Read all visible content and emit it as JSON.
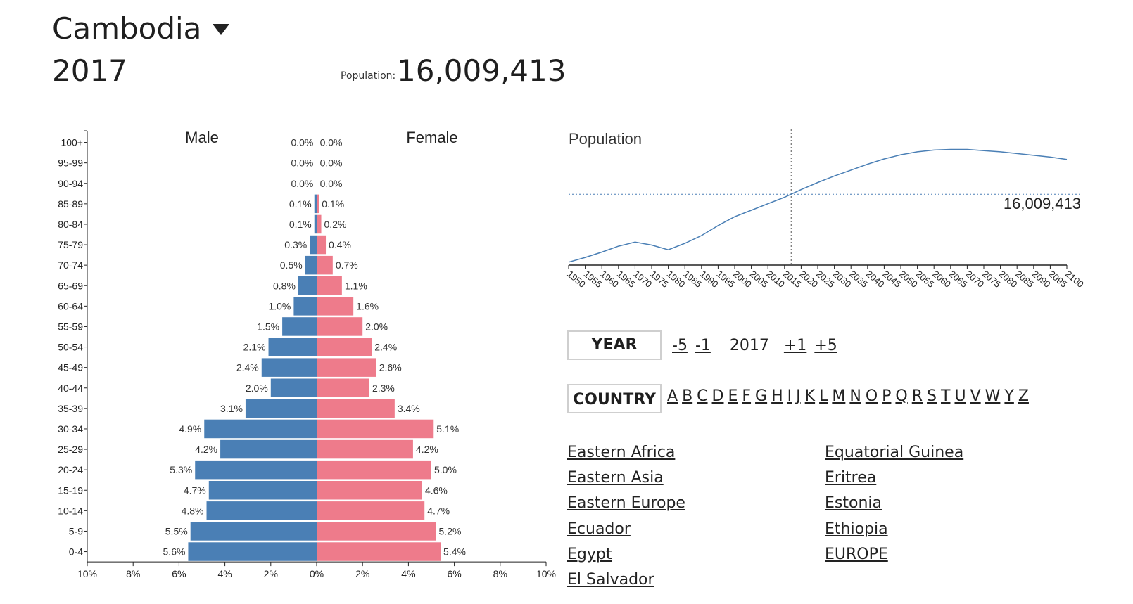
{
  "header": {
    "country": "Cambodia",
    "year": "2017",
    "population_label": "Population:",
    "population_value": "16,009,413"
  },
  "controls": {
    "year_label": "YEAR",
    "year_minus5": "-5",
    "year_minus1": "-1",
    "year_current": "2017",
    "year_plus1": "+1",
    "year_plus5": "+5",
    "country_label": "COUNTRY",
    "letters": [
      "A",
      "B",
      "C",
      "D",
      "E",
      "F",
      "G",
      "H",
      "I",
      "J",
      "K",
      "L",
      "M",
      "N",
      "O",
      "P",
      "Q",
      "R",
      "S",
      "T",
      "U",
      "V",
      "W",
      "Y",
      "Z"
    ]
  },
  "country_list": {
    "column1": [
      "Eastern Africa",
      "Eastern Asia",
      "Eastern Europe",
      "Ecuador",
      "Egypt",
      "El Salvador"
    ],
    "column2": [
      "Equatorial Guinea",
      "Eritrea",
      "Estonia",
      "Ethiopia",
      "EUROPE"
    ]
  },
  "chart_data": [
    {
      "type": "bar",
      "orientation": "horizontal",
      "title": "",
      "categories": [
        "100+",
        "95-99",
        "90-94",
        "85-89",
        "80-84",
        "75-79",
        "70-74",
        "65-69",
        "60-64",
        "55-59",
        "50-54",
        "45-49",
        "40-44",
        "35-39",
        "30-34",
        "25-29",
        "20-24",
        "15-19",
        "10-14",
        "5-9",
        "0-4"
      ],
      "series": [
        {
          "name": "Male",
          "color": "#4a7fb5",
          "values": [
            0.0,
            0.0,
            0.0,
            0.1,
            0.1,
            0.3,
            0.5,
            0.8,
            1.0,
            1.5,
            2.1,
            2.4,
            2.0,
            3.1,
            4.9,
            4.2,
            5.3,
            4.7,
            4.8,
            5.5,
            5.6
          ]
        },
        {
          "name": "Female",
          "color": "#ee7b8b",
          "values": [
            0.0,
            0.0,
            0.0,
            0.1,
            0.2,
            0.4,
            0.7,
            1.1,
            1.6,
            2.0,
            2.4,
            2.6,
            2.3,
            3.4,
            5.1,
            4.2,
            5.0,
            4.6,
            4.7,
            5.2,
            5.4
          ]
        }
      ],
      "xlim": [
        -10,
        10
      ],
      "x_ticks": [
        "10%",
        "8%",
        "6%",
        "4%",
        "2%",
        "0%",
        "2%",
        "4%",
        "6%",
        "8%",
        "10%"
      ],
      "unit": "%"
    },
    {
      "type": "line",
      "title": "Population",
      "color": "#4a7fb5",
      "x_ticks": [
        1950,
        1955,
        1960,
        1965,
        1970,
        1975,
        1980,
        1985,
        1990,
        1995,
        2000,
        2005,
        2010,
        2015,
        2020,
        2025,
        2030,
        2035,
        2040,
        2045,
        2050,
        2055,
        2060,
        2065,
        2070,
        2075,
        2080,
        2085,
        2090,
        2095,
        2100
      ],
      "xlim": [
        1950,
        2100
      ],
      "ylim": [
        4000000,
        27000000
      ],
      "x": [
        1950,
        1955,
        1960,
        1965,
        1970,
        1975,
        1980,
        1985,
        1990,
        1995,
        2000,
        2005,
        2010,
        2015,
        2017,
        2020,
        2025,
        2030,
        2035,
        2040,
        2045,
        2050,
        2055,
        2060,
        2065,
        2070,
        2075,
        2080,
        2085,
        2090,
        2095,
        2100
      ],
      "y": [
        4500000,
        5300000,
        6200000,
        7200000,
        7900000,
        7400000,
        6600000,
        7700000,
        9000000,
        10700000,
        12200000,
        13300000,
        14400000,
        15500000,
        16009413,
        16800000,
        18000000,
        19100000,
        20100000,
        21100000,
        22000000,
        22700000,
        23200000,
        23500000,
        23600000,
        23600000,
        23400000,
        23200000,
        22900000,
        22600000,
        22300000,
        21900000
      ],
      "marker_year": 2017,
      "marker_value_label": "16,009,413"
    }
  ]
}
